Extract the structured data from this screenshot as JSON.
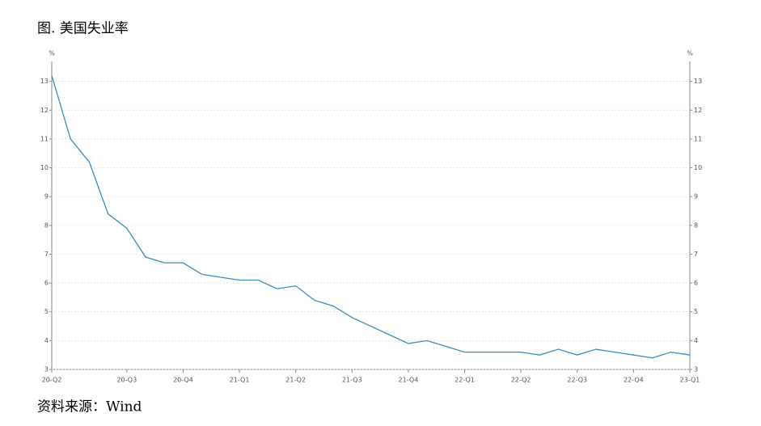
{
  "chart_data": {
    "type": "line",
    "title": "图. 美国失业率",
    "source": "资料来源：Wind",
    "y_label": "%",
    "y2_label": "%",
    "categories": [
      "20-Q2",
      null,
      null,
      null,
      "20-Q3",
      null,
      null,
      "20-Q4",
      null,
      null,
      "21-Q1",
      null,
      null,
      "21-Q2",
      null,
      null,
      "21-Q3",
      null,
      null,
      "21-Q4",
      null,
      null,
      "22-Q1",
      null,
      null,
      "22-Q2",
      null,
      null,
      "22-Q3",
      null,
      null,
      "22-Q4",
      null,
      null,
      "23-Q1"
    ],
    "series": [
      {
        "color": "#3a8dbb",
        "values": [
          13.2,
          11.0,
          10.2,
          8.4,
          7.9,
          6.9,
          6.7,
          6.7,
          6.3,
          6.2,
          6.1,
          6.1,
          5.8,
          5.9,
          5.4,
          5.2,
          4.8,
          4.5,
          4.2,
          3.9,
          4.0,
          3.8,
          3.6,
          3.6,
          3.6,
          3.6,
          3.5,
          3.7,
          3.5,
          3.7,
          3.6,
          3.5,
          3.4,
          3.6,
          3.5
        ]
      }
    ],
    "ylim": [
      3,
      14
    ],
    "yticks": [
      3,
      4,
      5,
      6,
      7,
      8,
      9,
      10,
      11,
      12,
      13
    ],
    "y2lim": [
      3,
      14
    ],
    "y2ticks": [
      3,
      4,
      5,
      6,
      7,
      8,
      9,
      10,
      11,
      12,
      13
    ],
    "grid": true
  }
}
